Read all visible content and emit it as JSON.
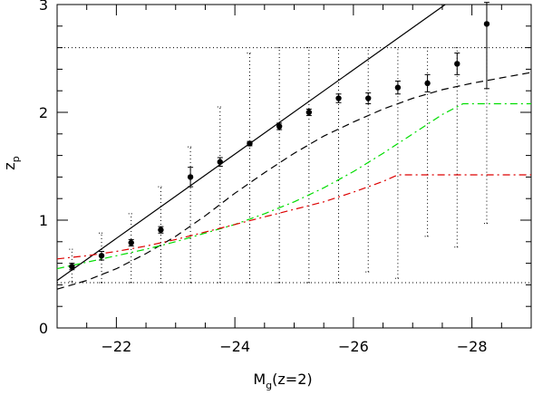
{
  "chart_data": {
    "type": "scatter",
    "xlabel": "M",
    "xlabel_sub": "g",
    "xlabel_suffix": "(z=2)",
    "ylabel": "z",
    "ylabel_sub": "p",
    "xlim": [
      -21.0,
      -29.0
    ],
    "ylim": [
      0,
      3
    ],
    "x_axis_reversed": true,
    "xticks_major": [
      -22,
      -24,
      -26,
      -28
    ],
    "xtick_labels": [
      "−22",
      "−24",
      "−26",
      "−28"
    ],
    "yticks_major": [
      0,
      1,
      2,
      3
    ],
    "ytick_labels": [
      "0",
      "1",
      "2",
      "3"
    ],
    "grid": false,
    "points_with_errors": [
      {
        "x": -21.25,
        "y": 0.57,
        "err_lo": 0.03,
        "err_hi": 0.03
      },
      {
        "x": -21.75,
        "y": 0.67,
        "err_lo": 0.04,
        "err_hi": 0.04
      },
      {
        "x": -22.25,
        "y": 0.79,
        "err_lo": 0.03,
        "err_hi": 0.03
      },
      {
        "x": -22.75,
        "y": 0.91,
        "err_lo": 0.03,
        "err_hi": 0.03
      },
      {
        "x": -23.25,
        "y": 1.4,
        "err_lo": 0.09,
        "err_hi": 0.09
      },
      {
        "x": -23.75,
        "y": 1.54,
        "err_lo": 0.04,
        "err_hi": 0.04
      },
      {
        "x": -24.25,
        "y": 1.71,
        "err_lo": 0.02,
        "err_hi": 0.02
      },
      {
        "x": -24.75,
        "y": 1.87,
        "err_lo": 0.03,
        "err_hi": 0.03
      },
      {
        "x": -25.25,
        "y": 2.0,
        "err_lo": 0.03,
        "err_hi": 0.03
      },
      {
        "x": -25.75,
        "y": 2.13,
        "err_lo": 0.04,
        "err_hi": 0.04
      },
      {
        "x": -26.25,
        "y": 2.13,
        "err_lo": 0.05,
        "err_hi": 0.05
      },
      {
        "x": -26.75,
        "y": 2.23,
        "err_lo": 0.06,
        "err_hi": 0.06
      },
      {
        "x": -27.25,
        "y": 2.27,
        "err_lo": 0.08,
        "err_hi": 0.08
      },
      {
        "x": -27.75,
        "y": 2.45,
        "err_lo": 0.1,
        "err_hi": 0.1
      },
      {
        "x": -28.25,
        "y": 2.82,
        "err_lo": 0.6,
        "err_hi": 0.2
      }
    ],
    "ranges_dotted": [
      {
        "x": -21.25,
        "y_lo": 0.43,
        "y_hi": 0.73
      },
      {
        "x": -21.75,
        "y_lo": 0.42,
        "y_hi": 0.88
      },
      {
        "x": -22.25,
        "y_lo": 0.42,
        "y_hi": 1.06
      },
      {
        "x": -22.75,
        "y_lo": 0.42,
        "y_hi": 1.31
      },
      {
        "x": -23.25,
        "y_lo": 0.42,
        "y_hi": 1.68
      },
      {
        "x": -23.75,
        "y_lo": 0.42,
        "y_hi": 2.05
      },
      {
        "x": -24.25,
        "y_lo": 0.42,
        "y_hi": 2.55
      },
      {
        "x": -24.75,
        "y_lo": 0.42,
        "y_hi": 2.6
      },
      {
        "x": -25.25,
        "y_lo": 0.42,
        "y_hi": 2.6
      },
      {
        "x": -25.75,
        "y_lo": 0.42,
        "y_hi": 2.6
      },
      {
        "x": -26.25,
        "y_lo": 0.52,
        "y_hi": 2.6
      },
      {
        "x": -26.75,
        "y_lo": 0.46,
        "y_hi": 2.6
      },
      {
        "x": -27.25,
        "y_lo": 0.85,
        "y_hi": 2.6
      },
      {
        "x": -27.75,
        "y_lo": 0.75,
        "y_hi": 2.6
      },
      {
        "x": -28.25,
        "y_lo": 0.97,
        "y_hi": 2.6
      }
    ],
    "hlines_dotted": [
      0.42,
      2.6
    ],
    "curves": [
      {
        "style": "solid",
        "color": "#000000",
        "x": [
          -21.0,
          -27.55
        ],
        "y": [
          0.44,
          3.0
        ]
      },
      {
        "style": "dashed",
        "color": "#000000",
        "x": [
          -21.0,
          -21.5,
          -22.0,
          -22.5,
          -23.0,
          -23.5,
          -24.0,
          -24.5,
          -25.0,
          -25.5,
          -26.0,
          -26.5,
          -27.0,
          -27.5,
          -28.0,
          -28.5,
          -29.0
        ],
        "y": [
          0.36,
          0.44,
          0.55,
          0.69,
          0.85,
          1.04,
          1.25,
          1.44,
          1.62,
          1.78,
          1.91,
          2.03,
          2.13,
          2.21,
          2.27,
          2.32,
          2.37
        ]
      },
      {
        "style": "dash-dot",
        "color": "#00dd00",
        "x": [
          -21.0,
          -21.5,
          -22.0,
          -22.5,
          -23.0,
          -23.5,
          -24.0,
          -24.5,
          -25.0,
          -25.5,
          -26.0,
          -26.5,
          -27.0,
          -27.5,
          -27.85,
          -29.0
        ],
        "y": [
          0.55,
          0.61,
          0.67,
          0.73,
          0.8,
          0.88,
          0.96,
          1.06,
          1.17,
          1.3,
          1.45,
          1.62,
          1.8,
          1.98,
          2.08,
          2.08
        ]
      },
      {
        "style": "dash-dot",
        "color": "#dd0000",
        "x": [
          -21.0,
          -21.5,
          -22.0,
          -22.5,
          -23.0,
          -23.5,
          -24.0,
          -24.5,
          -25.0,
          -25.5,
          -26.0,
          -26.5,
          -26.75,
          -29.0
        ],
        "y": [
          0.64,
          0.67,
          0.71,
          0.76,
          0.82,
          0.89,
          0.96,
          1.03,
          1.1,
          1.17,
          1.26,
          1.36,
          1.42,
          1.42
        ]
      }
    ]
  }
}
